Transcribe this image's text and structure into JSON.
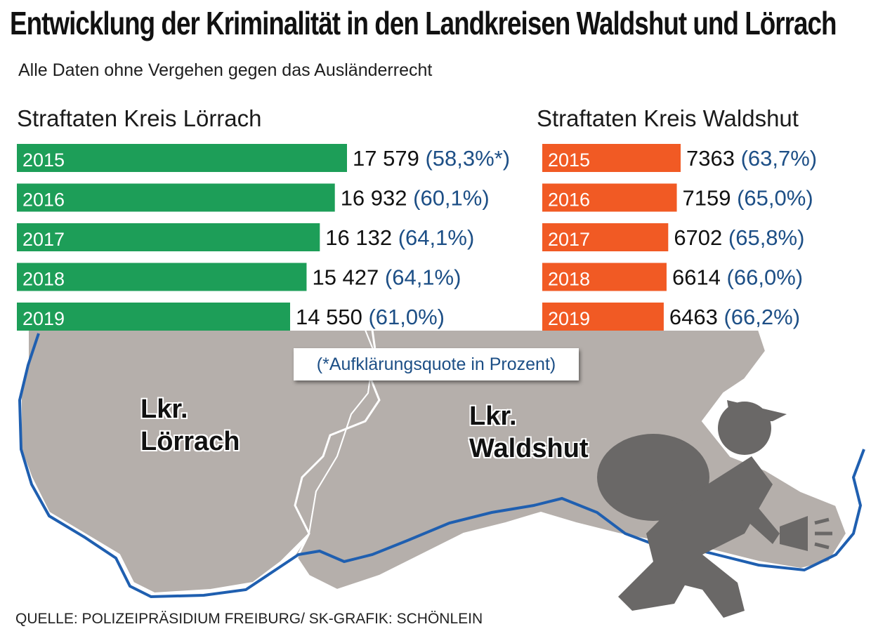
{
  "title": "Entwicklung der Kriminalität in den Landkreisen Waldshut und Lörrach",
  "subtitle": "Alle Daten ohne Vergehen gegen das Ausländerrecht",
  "note": "(*Aufklärungsquote in Prozent)",
  "source": "QUELLE: POLIZEIPRÄSIDIUM FREIBURG/ SK-GRAFIK: SCHÖNLEIN",
  "map": {
    "label_loerrach_line1": "Lkr.",
    "label_loerrach_line2": "Lörrach",
    "label_waldshut_line1": "Lkr.",
    "label_waldshut_line2": "Waldshut"
  },
  "colors": {
    "loerrach_bar": "#1d9e58",
    "waldshut_bar": "#f15a24",
    "percent_text": "#1d4f86",
    "map_fill": "#b5afab",
    "river": "#1f5fb0"
  },
  "chart_data": [
    {
      "type": "bar",
      "orientation": "horizontal",
      "title": "Straftaten Kreis Lörrach",
      "categories": [
        "2015",
        "2016",
        "2017",
        "2018",
        "2019"
      ],
      "values": [
        17579,
        16932,
        16132,
        15427,
        14550
      ],
      "value_labels": [
        "17 579",
        "16 932",
        "16 132",
        "15 427",
        "14 550"
      ],
      "percent_labels": [
        "(58,3%*)",
        "(60,1%)",
        "(64,1%)",
        "(64,1%)",
        "(61,0%)"
      ],
      "aufklaerungsquote": [
        58.3,
        60.1,
        64.1,
        64.1,
        61.0
      ],
      "color": "#1d9e58"
    },
    {
      "type": "bar",
      "orientation": "horizontal",
      "title": "Straftaten Kreis Waldshut",
      "categories": [
        "2015",
        "2016",
        "2017",
        "2018",
        "2019"
      ],
      "values": [
        7363,
        7159,
        6702,
        6614,
        6463
      ],
      "value_labels": [
        "7363",
        "7159",
        "6702",
        "6614",
        "6463"
      ],
      "percent_labels": [
        "(63,7%)",
        "(65,0%)",
        "(65,8%)",
        "(66,0%)",
        "(66,2%)"
      ],
      "aufklaerungsquote": [
        63.7,
        65.0,
        65.8,
        66.0,
        66.2
      ],
      "color": "#f15a24"
    }
  ]
}
